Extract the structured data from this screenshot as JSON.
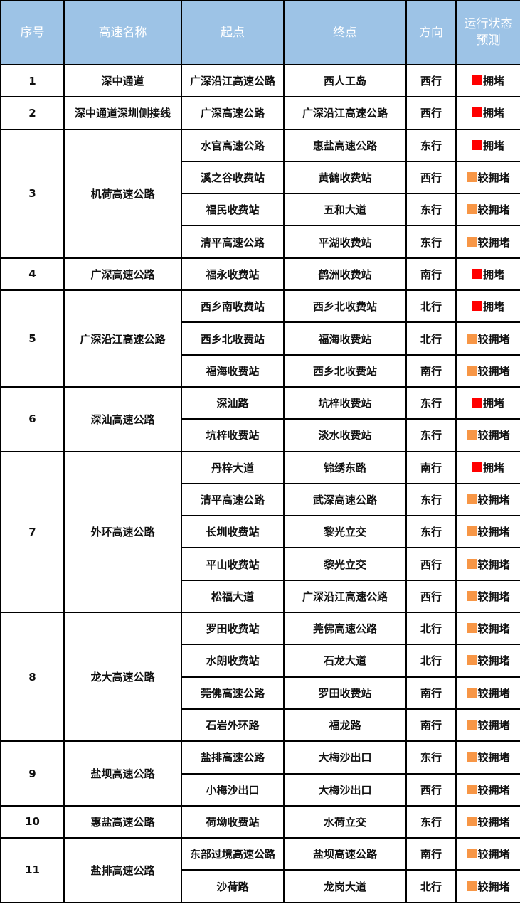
{
  "header": {
    "seq": "序号",
    "name": "高速名称",
    "start": "起点",
    "end": "终点",
    "dir": "方向",
    "status_line1": "运行状态",
    "status_line2": "预测"
  },
  "status_colors": {
    "拥堵": "#ff0000",
    "较拥堵": "#f79646"
  },
  "groups": [
    {
      "seq": "1",
      "name": "深中通道",
      "rows": [
        {
          "start": "广深沿江高速公路",
          "end": "西人工岛",
          "dir": "西行",
          "status": "拥堵"
        }
      ]
    },
    {
      "seq": "2",
      "name": "深中通道深圳侧接线",
      "rows": [
        {
          "start": "广深高速公路",
          "end": "广深沿江高速公路",
          "dir": "西行",
          "status": "拥堵"
        }
      ]
    },
    {
      "seq": "3",
      "name": "机荷高速公路",
      "rows": [
        {
          "start": "水官高速公路",
          "end": "惠盐高速公路",
          "dir": "东行",
          "status": "拥堵"
        },
        {
          "start": "溪之谷收费站",
          "end": "黄鹤收费站",
          "dir": "西行",
          "status": "较拥堵"
        },
        {
          "start": "福民收费站",
          "end": "五和大道",
          "dir": "东行",
          "status": "较拥堵"
        },
        {
          "start": "清平高速公路",
          "end": "平湖收费站",
          "dir": "东行",
          "status": "较拥堵"
        }
      ]
    },
    {
      "seq": "4",
      "name": "广深高速公路",
      "rows": [
        {
          "start": "福永收费站",
          "end": "鹤洲收费站",
          "dir": "南行",
          "status": "拥堵"
        }
      ]
    },
    {
      "seq": "5",
      "name": "广深沿江高速公路",
      "rows": [
        {
          "start": "西乡南收费站",
          "end": "西乡北收费站",
          "dir": "北行",
          "status": "拥堵"
        },
        {
          "start": "西乡北收费站",
          "end": "福海收费站",
          "dir": "北行",
          "status": "较拥堵"
        },
        {
          "start": "福海收费站",
          "end": "西乡北收费站",
          "dir": "南行",
          "status": "较拥堵"
        }
      ]
    },
    {
      "seq": "6",
      "name": "深汕高速公路",
      "rows": [
        {
          "start": "深汕路",
          "end": "坑梓收费站",
          "dir": "东行",
          "status": "拥堵"
        },
        {
          "start": "坑梓收费站",
          "end": "淡水收费站",
          "dir": "东行",
          "status": "较拥堵"
        }
      ]
    },
    {
      "seq": "7",
      "name": "外环高速公路",
      "rows": [
        {
          "start": "丹梓大道",
          "end": "锦绣东路",
          "dir": "南行",
          "status": "拥堵"
        },
        {
          "start": "清平高速公路",
          "end": "武深高速公路",
          "dir": "东行",
          "status": "较拥堵"
        },
        {
          "start": "长圳收费站",
          "end": "黎光立交",
          "dir": "东行",
          "status": "较拥堵"
        },
        {
          "start": "平山收费站",
          "end": "黎光立交",
          "dir": "西行",
          "status": "较拥堵"
        },
        {
          "start": "松福大道",
          "end": "广深沿江高速公路",
          "dir": "西行",
          "status": "较拥堵"
        }
      ]
    },
    {
      "seq": "8",
      "name": "龙大高速公路",
      "rows": [
        {
          "start": "罗田收费站",
          "end": "莞佛高速公路",
          "dir": "北行",
          "status": "较拥堵"
        },
        {
          "start": "水朗收费站",
          "end": "石龙大道",
          "dir": "北行",
          "status": "较拥堵"
        },
        {
          "start": "莞佛高速公路",
          "end": "罗田收费站",
          "dir": "南行",
          "status": "较拥堵"
        },
        {
          "start": "石岩外环路",
          "end": "福龙路",
          "dir": "南行",
          "status": "较拥堵"
        }
      ]
    },
    {
      "seq": "9",
      "name": "盐坝高速公路",
      "rows": [
        {
          "start": "盐排高速公路",
          "end": "大梅沙出口",
          "dir": "东行",
          "status": "较拥堵"
        },
        {
          "start": "小梅沙出口",
          "end": "大梅沙出口",
          "dir": "西行",
          "status": "较拥堵"
        }
      ]
    },
    {
      "seq": "10",
      "name": "惠盐高速公路",
      "rows": [
        {
          "start": "荷坳收费站",
          "end": "水荷立交",
          "dir": "东行",
          "status": "较拥堵"
        }
      ]
    },
    {
      "seq": "11",
      "name": "盐排高速公路",
      "rows": [
        {
          "start": "东部过境高速公路",
          "end": "盐坝高速公路",
          "dir": "南行",
          "status": "较拥堵"
        },
        {
          "start": "沙荷路",
          "end": "龙岗大道",
          "dir": "北行",
          "status": "较拥堵"
        }
      ]
    }
  ]
}
